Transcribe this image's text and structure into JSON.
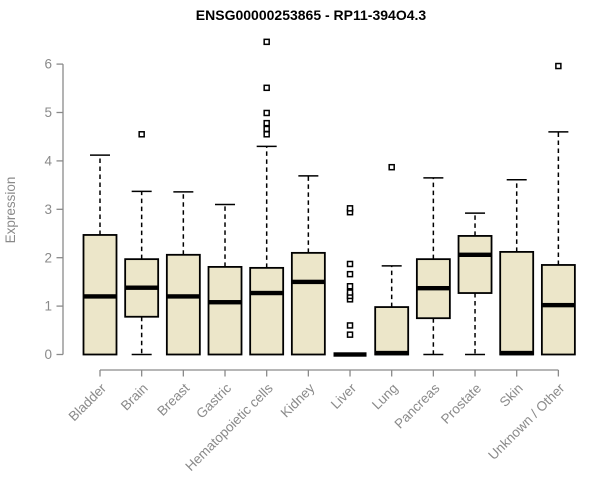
{
  "chart_data": {
    "type": "boxplot",
    "title": "ENSG00000253865 - RP11-394O4.3",
    "ylabel": "Expression",
    "xlabel": "",
    "ylim": [
      0,
      6.5
    ],
    "yticks": [
      0,
      1,
      2,
      3,
      4,
      5,
      6
    ],
    "grid": false,
    "legend": "none",
    "colors": {
      "box_fill": "#ece6c9",
      "box_stroke": "#000000",
      "axis": "#8a8a8a",
      "tick_label": "#8a8a8a",
      "title": "#000000",
      "background": "#ffffff"
    },
    "categories": [
      "Bladder",
      "Brain",
      "Breast",
      "Gastric",
      "Hematopoietic cells",
      "Kidney",
      "Liver",
      "Lung",
      "Pancreas",
      "Prostate",
      "Skin",
      "Unknown / Other"
    ],
    "series": [
      {
        "category": "Bladder",
        "whisker_low": 0,
        "q1": 0,
        "median": 1.2,
        "q3": 2.47,
        "whisker_high": 4.12,
        "outliers": []
      },
      {
        "category": "Brain",
        "whisker_low": 0,
        "q1": 0.78,
        "median": 1.38,
        "q3": 1.97,
        "whisker_high": 3.37,
        "outliers": [
          4.55
        ]
      },
      {
        "category": "Breast",
        "whisker_low": 0,
        "q1": 0,
        "median": 1.2,
        "q3": 2.06,
        "whisker_high": 3.36,
        "outliers": []
      },
      {
        "category": "Gastric",
        "whisker_low": 0,
        "q1": 0,
        "median": 1.08,
        "q3": 1.81,
        "whisker_high": 3.1,
        "outliers": []
      },
      {
        "category": "Hematopoietic cells",
        "whisker_low": 0,
        "q1": 0,
        "median": 1.27,
        "q3": 1.79,
        "whisker_high": 4.3,
        "outliers": [
          4.55,
          4.66,
          4.78,
          4.99,
          5.51,
          6.46
        ]
      },
      {
        "category": "Kidney",
        "whisker_low": 0,
        "q1": 0,
        "median": 1.5,
        "q3": 2.1,
        "whisker_high": 3.69,
        "outliers": []
      },
      {
        "category": "Liver",
        "whisker_low": 0,
        "q1": 0,
        "median": 0,
        "q3": 0,
        "whisker_high": 0,
        "outliers": [
          0.41,
          0.6,
          1.14,
          1.21,
          1.28,
          1.41,
          1.66,
          1.87,
          2.94,
          3.02
        ]
      },
      {
        "category": "Lung",
        "whisker_low": 0,
        "q1": 0,
        "median": 0.03,
        "q3": 0.98,
        "whisker_high": 1.83,
        "outliers": [
          3.87
        ]
      },
      {
        "category": "Pancreas",
        "whisker_low": 0,
        "q1": 0.75,
        "median": 1.37,
        "q3": 1.97,
        "whisker_high": 3.65,
        "outliers": []
      },
      {
        "category": "Prostate",
        "whisker_low": 0,
        "q1": 1.27,
        "median": 2.06,
        "q3": 2.45,
        "whisker_high": 2.92,
        "outliers": []
      },
      {
        "category": "Skin",
        "whisker_low": 0,
        "q1": 0,
        "median": 0.03,
        "q3": 2.12,
        "whisker_high": 3.61,
        "outliers": []
      },
      {
        "category": "Unknown / Other",
        "whisker_low": 0,
        "q1": 0,
        "median": 1.02,
        "q3": 1.85,
        "whisker_high": 4.6,
        "outliers": [
          5.96
        ]
      }
    ]
  }
}
